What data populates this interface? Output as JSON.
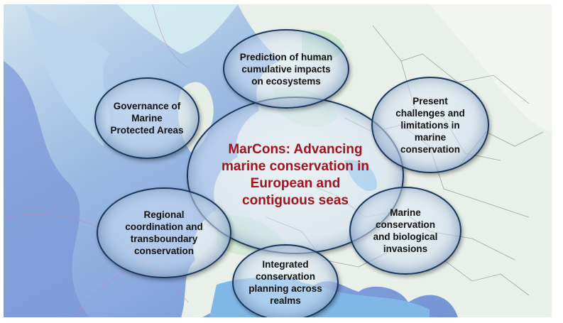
{
  "diagram": {
    "center": [
      "MarCons: Advancing",
      "marine conservation in",
      "European and",
      "contiguous seas"
    ],
    "nodes": {
      "top": [
        "Prediction of human",
        "cumulative impacts",
        "on ecosystems"
      ],
      "upper_left": [
        "Governance of",
        "Marine",
        "Protected Areas"
      ],
      "upper_right": [
        "Present",
        "challenges and",
        "limitations in",
        "marine",
        "conservation"
      ],
      "lower_left": [
        "Regional",
        "coordination and",
        "transboundary",
        "conservation"
      ],
      "lower_right": [
        "Marine",
        "conservation",
        "and biological",
        "invasions"
      ],
      "bottom": [
        "Integrated",
        "conservation",
        "planning across",
        "realms"
      ]
    }
  },
  "colors": {
    "center_text": "#a0141e",
    "node_text": "#111111",
    "bubble_border": "#16365c",
    "sea_deep": "#6f8fd0",
    "sea_shallow": "#a9c9ea",
    "land": "#e9f0ea"
  }
}
